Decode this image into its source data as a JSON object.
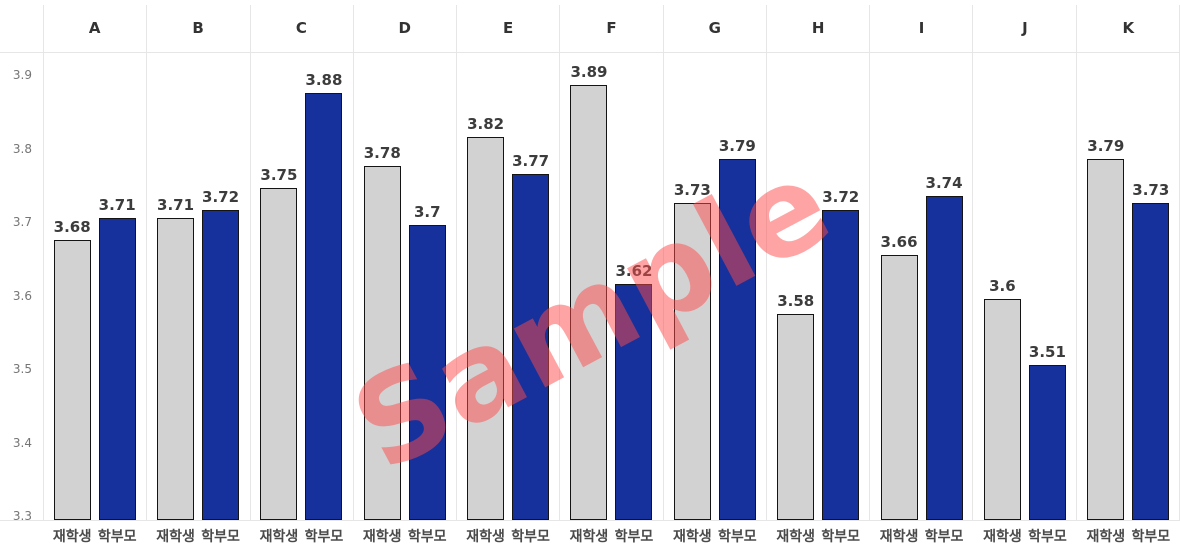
{
  "chart_data": {
    "type": "bar",
    "categories": [
      "A",
      "B",
      "C",
      "D",
      "E",
      "F",
      "G",
      "H",
      "I",
      "J",
      "K"
    ],
    "series": [
      {
        "name": "재학생",
        "color": "#d2d2d2",
        "values": [
          3.68,
          3.71,
          3.75,
          3.78,
          3.82,
          3.89,
          3.73,
          3.58,
          3.66,
          3.6,
          3.79
        ]
      },
      {
        "name": "학부모",
        "color": "#16319b",
        "values": [
          3.71,
          3.72,
          3.88,
          3.7,
          3.77,
          3.62,
          3.79,
          3.72,
          3.74,
          3.51,
          3.73
        ]
      }
    ],
    "ylim": [
      3.3,
      3.9
    ],
    "yticks": [
      3.9,
      3.8,
      3.7,
      3.6,
      3.5,
      3.4,
      3.3
    ],
    "value_labels_shown": true,
    "legend_position": "below-each-bar",
    "grid": "vertical-column-separators",
    "bar_border_color": "#141414",
    "gridline_color": "#e6e6e6"
  },
  "watermark": {
    "text": "Sample",
    "color": "rgba(255,73,73,0.5)"
  }
}
